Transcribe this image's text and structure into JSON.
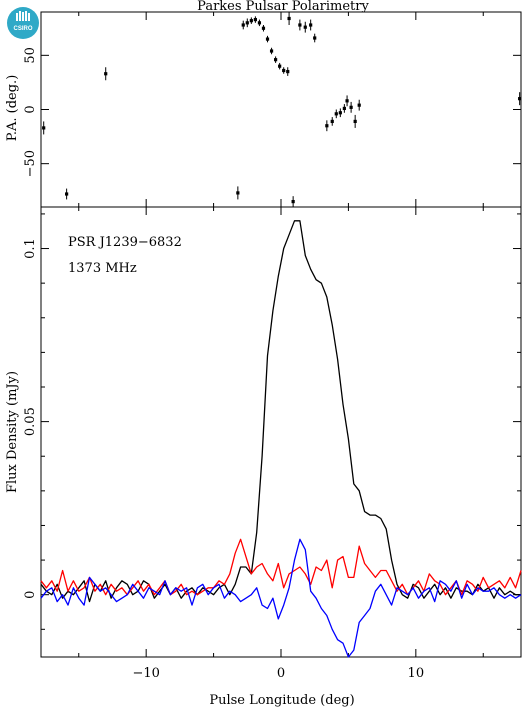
{
  "title": "Parkes Pulsar Polarimetry",
  "logo_text": "CSIRO",
  "chart_data": [
    {
      "type": "scatter",
      "panel": "top",
      "ylabel": "P.A. (deg.)",
      "xlim": [
        -17.8,
        17.8
      ],
      "ylim": [
        -90,
        90
      ],
      "y_ticks": [
        -50,
        0,
        50
      ],
      "y_tick_labels": [
        "−50",
        "0",
        "50"
      ],
      "points": [
        {
          "x": -17.6,
          "y": -17,
          "err": 6
        },
        {
          "x": -15.9,
          "y": -78,
          "err": 5
        },
        {
          "x": -13.0,
          "y": 33,
          "err": 6
        },
        {
          "x": -3.2,
          "y": -77,
          "err": 6
        },
        {
          "x": -2.8,
          "y": 78,
          "err": 4
        },
        {
          "x": -2.5,
          "y": 80,
          "err": 4
        },
        {
          "x": -2.2,
          "y": 82,
          "err": 3
        },
        {
          "x": -1.9,
          "y": 83,
          "err": 3
        },
        {
          "x": -1.6,
          "y": 80,
          "err": 3
        },
        {
          "x": -1.3,
          "y": 75,
          "err": 3
        },
        {
          "x": -1.0,
          "y": 65,
          "err": 3
        },
        {
          "x": -0.7,
          "y": 54,
          "err": 3
        },
        {
          "x": -0.4,
          "y": 46,
          "err": 3
        },
        {
          "x": -0.1,
          "y": 40,
          "err": 3
        },
        {
          "x": 0.2,
          "y": 36,
          "err": 3
        },
        {
          "x": 0.5,
          "y": 35,
          "err": 4
        },
        {
          "x": 0.6,
          "y": 84,
          "err": 6
        },
        {
          "x": 0.9,
          "y": -85,
          "err": 5
        },
        {
          "x": 1.4,
          "y": 78,
          "err": 5
        },
        {
          "x": 1.8,
          "y": 76,
          "err": 5
        },
        {
          "x": 2.2,
          "y": 78,
          "err": 5
        },
        {
          "x": 2.5,
          "y": 66,
          "err": 4
        },
        {
          "x": 3.4,
          "y": -15,
          "err": 5
        },
        {
          "x": 3.8,
          "y": -11,
          "err": 4
        },
        {
          "x": 4.1,
          "y": -4,
          "err": 4
        },
        {
          "x": 4.4,
          "y": -3,
          "err": 4
        },
        {
          "x": 4.7,
          "y": 1,
          "err": 4
        },
        {
          "x": 4.9,
          "y": 8,
          "err": 5
        },
        {
          "x": 5.2,
          "y": 2,
          "err": 5
        },
        {
          "x": 5.5,
          "y": -11,
          "err": 6
        },
        {
          "x": 5.8,
          "y": 4,
          "err": 5
        },
        {
          "x": 17.7,
          "y": 10,
          "err": 6
        }
      ]
    },
    {
      "type": "line",
      "panel": "bottom",
      "xlabel": "Pulse Longitude (deg)",
      "ylabel": "Flux Density (mJy)",
      "xlim": [
        -17.8,
        17.8
      ],
      "ylim": [
        -0.018,
        0.112
      ],
      "x_ticks": [
        -10,
        0,
        10
      ],
      "x_tick_labels": [
        "−10",
        "0",
        "10"
      ],
      "y_ticks": [
        0,
        0.05,
        0.1
      ],
      "y_tick_labels": [
        "0",
        "0.05",
        "0.1"
      ],
      "annotations": [
        "PSR J1239−6832",
        "1373 MHz"
      ],
      "x_start": -17.8,
      "x_step": 0.4,
      "series": [
        {
          "color": "#000000",
          "values": [
            0.003,
            0.001,
            0.0,
            0.003,
            -0.001,
            0.001,
            0.0,
            0.002,
            0.004,
            -0.002,
            0.003,
            0.001,
            0.004,
            -0.001,
            0.002,
            0.004,
            0.003,
            0.0,
            0.001,
            0.004,
            0.003,
            -0.001,
            0.001,
            0.003,
            0.0,
            0.002,
            -0.001,
            0.001,
            0.002,
            0.0,
            0.002,
            0.001,
            0.0,
            0.002,
            0.003,
            0.0,
            0.003,
            0.008,
            0.008,
            0.006,
            0.018,
            0.04,
            0.069,
            0.082,
            0.092,
            0.1,
            0.104,
            0.108,
            0.108,
            0.098,
            0.094,
            0.091,
            0.09,
            0.086,
            0.078,
            0.068,
            0.055,
            0.045,
            0.032,
            0.03,
            0.024,
            0.023,
            0.023,
            0.022,
            0.019,
            0.01,
            0.003,
            0.0,
            -0.001,
            0.003,
            0.002,
            -0.001,
            0.001,
            0.003,
            0.0,
            0.002,
            -0.001,
            0.002,
            0.001,
            0.001,
            0.0,
            0.003,
            0.001,
            0.002,
            -0.001,
            0.002,
            0.0,
            0.001,
            0.0,
            0.0
          ]
        },
        {
          "color": "#ff0000",
          "values": [
            0.004,
            0.002,
            0.004,
            0.001,
            0.007,
            0.001,
            0.004,
            0.001,
            0.002,
            0.005,
            0.001,
            0.003,
            0.0,
            0.003,
            0.001,
            0.002,
            0.0,
            0.002,
            0.004,
            0.001,
            0.003,
            0.0,
            0.002,
            0.004,
            0.0,
            0.001,
            0.003,
            0.0,
            0.001,
            0.0,
            0.001,
            0.002,
            0.002,
            0.004,
            0.003,
            0.006,
            0.012,
            0.016,
            0.011,
            0.006,
            0.008,
            0.009,
            0.006,
            0.004,
            0.009,
            0.002,
            0.006,
            0.007,
            0.008,
            0.006,
            0.003,
            0.008,
            0.007,
            0.01,
            0.002,
            0.01,
            0.011,
            0.005,
            0.005,
            0.014,
            0.009,
            0.007,
            0.005,
            0.007,
            0.007,
            0.004,
            0.001,
            0.003,
            0.0,
            0.002,
            0.004,
            0.001,
            0.006,
            0.004,
            0.003,
            0.0,
            0.002,
            0.004,
            0.0,
            0.004,
            0.003,
            0.001,
            0.005,
            0.002,
            0.003,
            0.004,
            0.002,
            0.005,
            0.002,
            0.007
          ]
        },
        {
          "color": "#0000ff",
          "values": [
            -0.001,
            0.001,
            0.002,
            -0.002,
            0.0,
            -0.003,
            0.002,
            -0.001,
            -0.003,
            0.005,
            0.003,
            0.001,
            0.002,
            0.0,
            -0.002,
            -0.001,
            0.0,
            0.003,
            0.001,
            -0.001,
            0.002,
            0.001,
            0.0,
            0.004,
            0.0,
            0.002,
            0.001,
            0.002,
            -0.003,
            0.002,
            0.003,
            0.0,
            0.002,
            0.003,
            -0.001,
            0.001,
            0.0,
            -0.002,
            -0.001,
            0.0,
            0.002,
            -0.003,
            -0.004,
            -0.001,
            -0.007,
            -0.003,
            0.002,
            0.01,
            0.016,
            0.013,
            0.001,
            -0.001,
            -0.004,
            -0.006,
            -0.01,
            -0.013,
            -0.014,
            -0.018,
            -0.016,
            -0.008,
            -0.006,
            -0.004,
            0.001,
            0.003,
            0.0,
            -0.003,
            0.002,
            0.001,
            0.0,
            0.002,
            -0.001,
            0.001,
            0.002,
            -0.002,
            0.004,
            0.003,
            0.001,
            0.004,
            -0.001,
            0.003,
            0.0,
            0.002,
            0.001,
            0.001,
            0.002,
            0.0,
            -0.001,
            0.0,
            -0.001,
            0.0
          ]
        }
      ]
    }
  ]
}
